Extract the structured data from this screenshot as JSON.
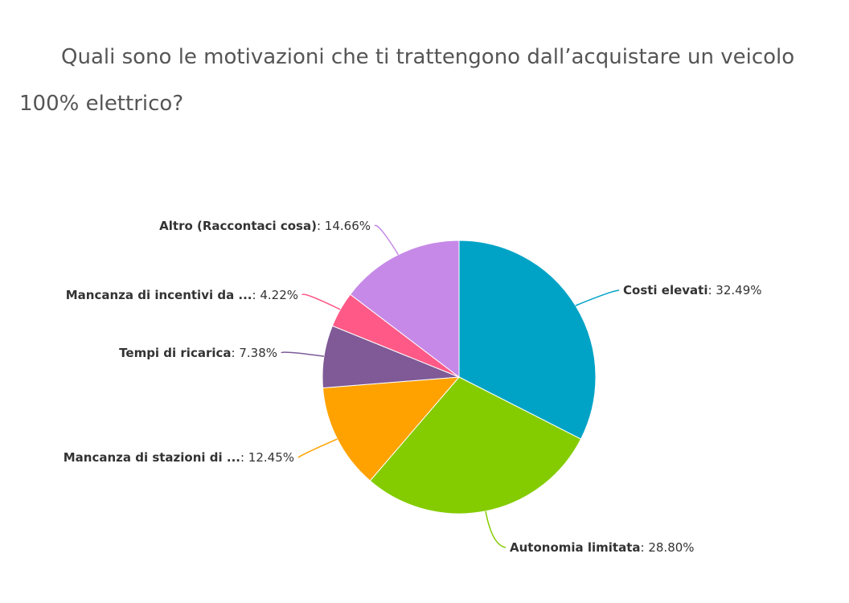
{
  "chart_data": {
    "type": "pie",
    "title": "Quali sono le motivazioni che ti trattengono dall’acquistare un veicolo 100% elettrico?",
    "slices": [
      {
        "label": "Costi elevati",
        "value": 32.49,
        "value_label": "32.49%",
        "color": "#00a3c6"
      },
      {
        "label": "Autonomia limitata",
        "value": 28.8,
        "value_label": "28.80%",
        "color": "#84cc00"
      },
      {
        "label": "Mancanza di stazioni di ...",
        "value": 12.45,
        "value_label": "12.45%",
        "color": "#ffa200"
      },
      {
        "label": "Tempi di ricarica",
        "value": 7.38,
        "value_label": "7.38%",
        "color": "#7f5a97"
      },
      {
        "label": "Mancanza di incentivi da ...",
        "value": 4.22,
        "value_label": "4.22%",
        "color": "#ff5a87"
      },
      {
        "label": "Altro (Raccontaci cosa)",
        "value": 14.66,
        "value_label": "14.66%",
        "color": "#c689e8"
      }
    ]
  }
}
